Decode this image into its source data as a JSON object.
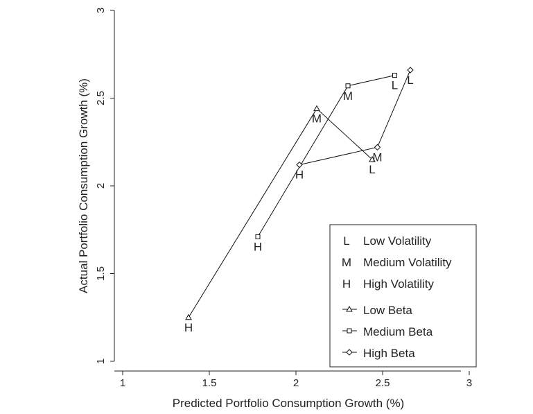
{
  "chart_data": {
    "type": "line",
    "xlabel": "Predicted Portfolio Consumption Growth (%)",
    "ylabel": "Actual Portfolio Consumption Growth (%)",
    "xlim": [
      1,
      3
    ],
    "ylim": [
      1,
      3
    ],
    "xticks": [
      "1",
      "1.5",
      "2",
      "2.5",
      "3"
    ],
    "yticks": [
      "1",
      "1.5",
      "2",
      "2.5",
      "3"
    ],
    "grid": false,
    "legend_position": "bottom-right",
    "text_legend": [
      {
        "symbol": "L",
        "label": "Low Volatility"
      },
      {
        "symbol": "M",
        "label": "Medium Volatility"
      },
      {
        "symbol": "H",
        "label": "High Volatility"
      }
    ],
    "series": [
      {
        "name": "Low Beta",
        "marker": "triangle",
        "points": [
          {
            "x": 1.38,
            "y": 1.25,
            "label": "H"
          },
          {
            "x": 2.12,
            "y": 2.44,
            "label": "M"
          },
          {
            "x": 2.44,
            "y": 2.15,
            "label": "L"
          }
        ]
      },
      {
        "name": "Medium Beta",
        "marker": "square",
        "points": [
          {
            "x": 1.78,
            "y": 1.71,
            "label": "H"
          },
          {
            "x": 2.3,
            "y": 2.57,
            "label": "M"
          },
          {
            "x": 2.57,
            "y": 2.63,
            "label": "L"
          }
        ]
      },
      {
        "name": "High Beta",
        "marker": "diamond",
        "points": [
          {
            "x": 2.02,
            "y": 2.12,
            "label": "H"
          },
          {
            "x": 2.47,
            "y": 2.22,
            "label": "M"
          },
          {
            "x": 2.66,
            "y": 2.66,
            "label": "L"
          }
        ]
      }
    ]
  }
}
